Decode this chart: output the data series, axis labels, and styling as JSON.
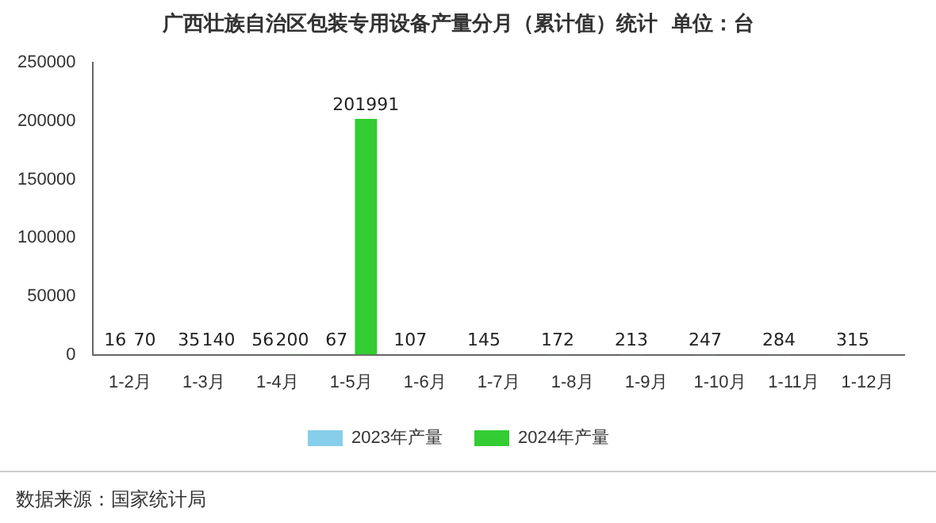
{
  "chart_data": {
    "type": "bar",
    "title": "广西壮族自治区包装专用设备产量分月（累计值）统计  单位：台",
    "categories": [
      "1-2月",
      "1-3月",
      "1-4月",
      "1-5月",
      "1-6月",
      "1-7月",
      "1-8月",
      "1-9月",
      "1-10月",
      "1-11月",
      "1-12月"
    ],
    "series": [
      {
        "name": "2023年产量",
        "color": "#87ceeb",
        "values": [
          16,
          35,
          56,
          67,
          107,
          145,
          172,
          213,
          247,
          284,
          315
        ]
      },
      {
        "name": "2024年产量",
        "color": "#33cc33",
        "values": [
          70,
          140,
          200,
          201991,
          null,
          null,
          null,
          null,
          null,
          null,
          null
        ]
      }
    ],
    "ylim": [
      0,
      250000
    ],
    "yticks": [
      0,
      50000,
      100000,
      150000,
      200000,
      250000
    ],
    "grid": false,
    "legend": "bottom",
    "data_labels": true,
    "annotations": [
      "数据来源：国家统计局"
    ]
  }
}
